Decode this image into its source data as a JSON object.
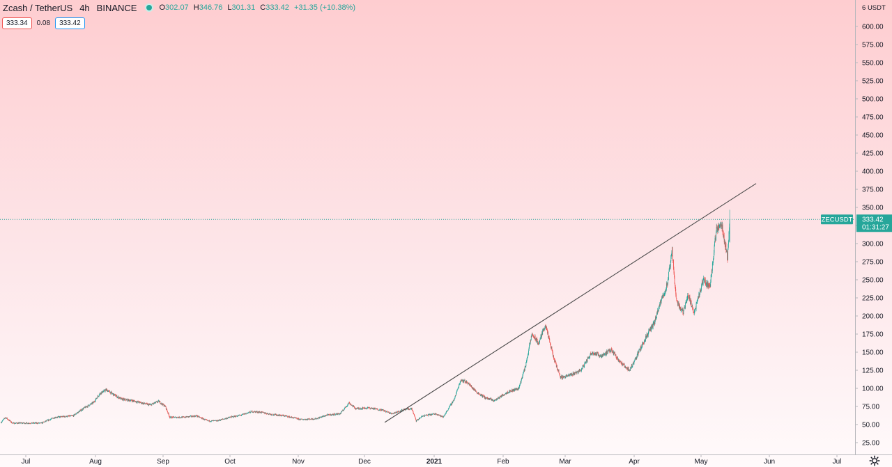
{
  "header": {
    "symbol": "Zcash / TetherUS",
    "interval": "4h",
    "exchange": "BINANCE",
    "open_label": "O",
    "open": "302.07",
    "high_label": "H",
    "high": "346.76",
    "low_label": "L",
    "low": "301.31",
    "close_label": "C",
    "close": "333.42",
    "change": "+31.35 (+10.38%)"
  },
  "quote": {
    "bid": "333.34",
    "spread": "0.08",
    "ask": "333.42"
  },
  "colors": {
    "up": "#26a69a",
    "down": "#ef5350",
    "trendline": "#4a4a4a",
    "last_price": "#26a69a"
  },
  "chart_data": {
    "type": "candlestick",
    "symbol_label": "ZECUSDT",
    "interval": "4h",
    "y_unit": "USDT",
    "ylim": [
      0,
      620
    ],
    "y_ticks": [
      "25.00",
      "50.00",
      "75.00",
      "100.00",
      "125.00",
      "150.00",
      "175.00",
      "200.00",
      "225.00",
      "250.00",
      "275.00",
      "300.00",
      "325.00",
      "350.00",
      "375.00",
      "400.00",
      "425.00",
      "450.00",
      "475.00",
      "500.00",
      "525.00",
      "550.00",
      "575.00",
      "600.00"
    ],
    "x_ticks": [
      {
        "label": "Jul",
        "date": "2020-07-01"
      },
      {
        "label": "Aug",
        "date": "2020-08-01"
      },
      {
        "label": "Sep",
        "date": "2020-09-01"
      },
      {
        "label": "Oct",
        "date": "2020-10-01"
      },
      {
        "label": "Nov",
        "date": "2020-11-01"
      },
      {
        "label": "Dec",
        "date": "2020-12-01"
      },
      {
        "label": "2021",
        "date": "2021-01-01",
        "bold": true
      },
      {
        "label": "Feb",
        "date": "2021-02-01"
      },
      {
        "label": "Mar",
        "date": "2021-03-01"
      },
      {
        "label": "Apr",
        "date": "2021-04-01"
      },
      {
        "label": "May",
        "date": "2021-05-01"
      },
      {
        "label": "Jun",
        "date": "2021-06-01"
      },
      {
        "label": "Jul",
        "date": "2021-07-01"
      }
    ],
    "x_range": [
      "2020-06-20",
      "2021-07-20"
    ],
    "last_price": "333.42",
    "countdown": "01:31:27",
    "trendline": {
      "points": [
        {
          "date": "2020-12-10",
          "price": 53
        },
        {
          "date": "2021-05-26",
          "price": 383
        }
      ]
    },
    "price_path": [
      {
        "date": "2020-06-20",
        "price": 53
      },
      {
        "date": "2020-06-22",
        "price": 60
      },
      {
        "date": "2020-06-25",
        "price": 52
      },
      {
        "date": "2020-07-08",
        "price": 52
      },
      {
        "date": "2020-07-14",
        "price": 60
      },
      {
        "date": "2020-07-22",
        "price": 62
      },
      {
        "date": "2020-07-27",
        "price": 73
      },
      {
        "date": "2020-07-31",
        "price": 80
      },
      {
        "date": "2020-08-03",
        "price": 93
      },
      {
        "date": "2020-08-06",
        "price": 98
      },
      {
        "date": "2020-08-09",
        "price": 92
      },
      {
        "date": "2020-08-13",
        "price": 85
      },
      {
        "date": "2020-08-18",
        "price": 83
      },
      {
        "date": "2020-08-26",
        "price": 77
      },
      {
        "date": "2020-08-30",
        "price": 82
      },
      {
        "date": "2020-09-02",
        "price": 75
      },
      {
        "date": "2020-09-04",
        "price": 60
      },
      {
        "date": "2020-09-10",
        "price": 60
      },
      {
        "date": "2020-09-16",
        "price": 62
      },
      {
        "date": "2020-09-21",
        "price": 55
      },
      {
        "date": "2020-09-25",
        "price": 55
      },
      {
        "date": "2020-10-01",
        "price": 60
      },
      {
        "date": "2020-10-06",
        "price": 63
      },
      {
        "date": "2020-10-11",
        "price": 68
      },
      {
        "date": "2020-10-15",
        "price": 67
      },
      {
        "date": "2020-10-20",
        "price": 64
      },
      {
        "date": "2020-10-26",
        "price": 62
      },
      {
        "date": "2020-11-02",
        "price": 57
      },
      {
        "date": "2020-11-09",
        "price": 58
      },
      {
        "date": "2020-11-14",
        "price": 63
      },
      {
        "date": "2020-11-20",
        "price": 65
      },
      {
        "date": "2020-11-24",
        "price": 80
      },
      {
        "date": "2020-11-27",
        "price": 72
      },
      {
        "date": "2020-12-03",
        "price": 73
      },
      {
        "date": "2020-12-09",
        "price": 70
      },
      {
        "date": "2020-12-13",
        "price": 65
      },
      {
        "date": "2020-12-18",
        "price": 70
      },
      {
        "date": "2020-12-22",
        "price": 72
      },
      {
        "date": "2020-12-24",
        "price": 55
      },
      {
        "date": "2020-12-27",
        "price": 62
      },
      {
        "date": "2021-01-02",
        "price": 65
      },
      {
        "date": "2021-01-05",
        "price": 60
      },
      {
        "date": "2021-01-10",
        "price": 85
      },
      {
        "date": "2021-01-13",
        "price": 112
      },
      {
        "date": "2021-01-16",
        "price": 108
      },
      {
        "date": "2021-01-20",
        "price": 95
      },
      {
        "date": "2021-01-24",
        "price": 87
      },
      {
        "date": "2021-01-28",
        "price": 83
      },
      {
        "date": "2021-02-03",
        "price": 95
      },
      {
        "date": "2021-02-08",
        "price": 100
      },
      {
        "date": "2021-02-11",
        "price": 130
      },
      {
        "date": "2021-02-14",
        "price": 175
      },
      {
        "date": "2021-02-17",
        "price": 162
      },
      {
        "date": "2021-02-20",
        "price": 188
      },
      {
        "date": "2021-02-24",
        "price": 140
      },
      {
        "date": "2021-02-27",
        "price": 115
      },
      {
        "date": "2021-03-03",
        "price": 118
      },
      {
        "date": "2021-03-08",
        "price": 125
      },
      {
        "date": "2021-03-13",
        "price": 150
      },
      {
        "date": "2021-03-17",
        "price": 145
      },
      {
        "date": "2021-03-22",
        "price": 153
      },
      {
        "date": "2021-03-26",
        "price": 135
      },
      {
        "date": "2021-03-30",
        "price": 125
      },
      {
        "date": "2021-04-03",
        "price": 150
      },
      {
        "date": "2021-04-07",
        "price": 175
      },
      {
        "date": "2021-04-10",
        "price": 190
      },
      {
        "date": "2021-04-13",
        "price": 220
      },
      {
        "date": "2021-04-16",
        "price": 245
      },
      {
        "date": "2021-04-18",
        "price": 290
      },
      {
        "date": "2021-04-20",
        "price": 220
      },
      {
        "date": "2021-04-23",
        "price": 205
      },
      {
        "date": "2021-04-25",
        "price": 230
      },
      {
        "date": "2021-04-28",
        "price": 205
      },
      {
        "date": "2021-05-02",
        "price": 250
      },
      {
        "date": "2021-05-05",
        "price": 240
      },
      {
        "date": "2021-05-08",
        "price": 320
      },
      {
        "date": "2021-05-10",
        "price": 330
      },
      {
        "date": "2021-05-12",
        "price": 300
      },
      {
        "date": "2021-05-13",
        "price": 280
      },
      {
        "date": "2021-05-14",
        "price": 333.42
      }
    ]
  }
}
